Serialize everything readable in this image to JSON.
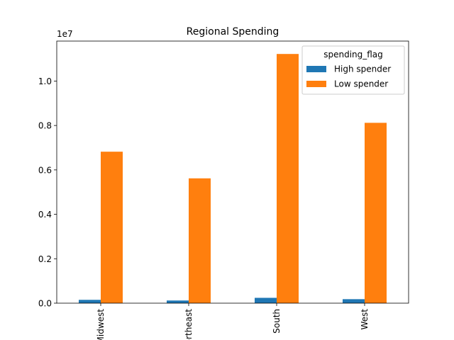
{
  "chart_data": {
    "type": "bar",
    "title": "Regional Spending",
    "xlabel": "",
    "ylabel": "",
    "categories": [
      "Midwest",
      "Northeast",
      "South",
      "West"
    ],
    "series": [
      {
        "name": "High spender",
        "values": [
          150000,
          120000,
          240000,
          180000
        ]
      },
      {
        "name": "Low spender",
        "values": [
          6820000,
          5620000,
          11220000,
          8120000
        ]
      }
    ],
    "ylim": [
      0,
      11800000
    ],
    "y_scale_label": "1e7",
    "y_ticks": [
      0,
      2000000,
      4000000,
      6000000,
      8000000,
      10000000
    ],
    "y_tick_labels": [
      "0.0",
      "0.2",
      "0.4",
      "0.6",
      "0.8",
      "1.0"
    ],
    "legend": {
      "title": "spending_flag",
      "position": "top-right"
    },
    "x_tick_rotation": "vertical",
    "grid": false,
    "colors": [
      "#1f77b4",
      "#ff7f0e"
    ]
  }
}
